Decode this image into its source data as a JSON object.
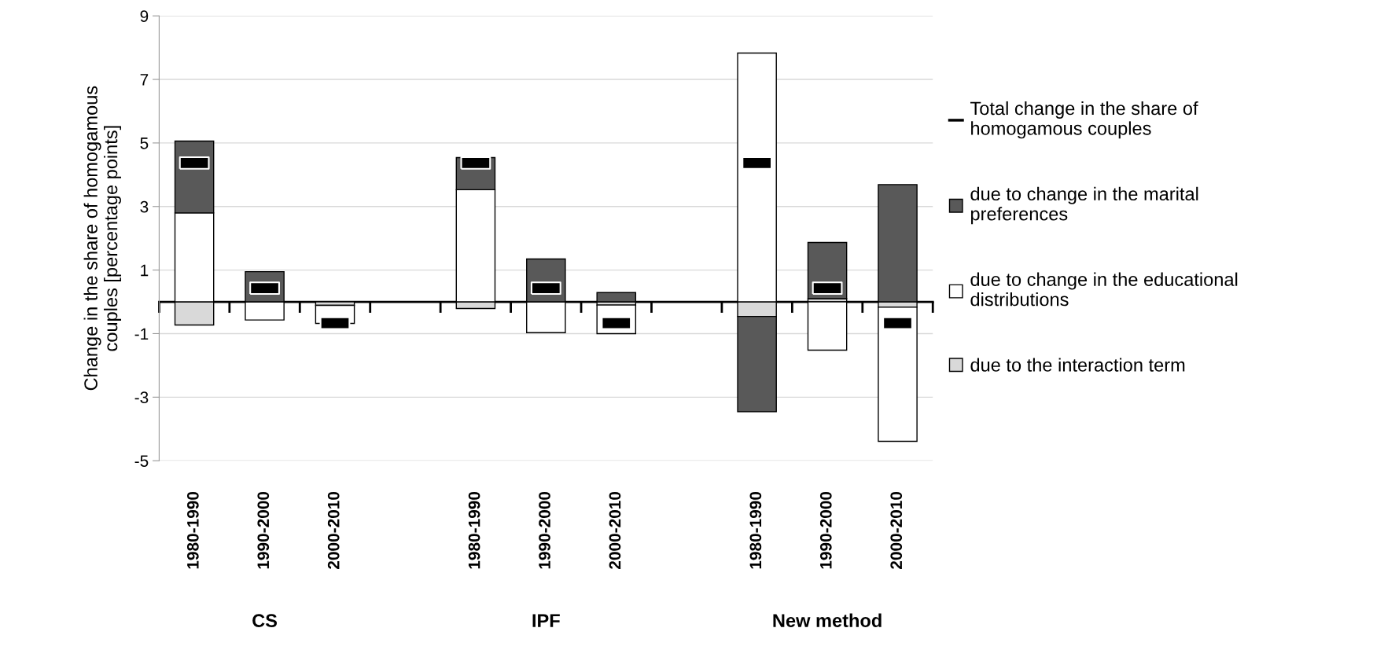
{
  "chart_data": {
    "type": "bar",
    "stacked": true,
    "categories": [
      "1980-1990",
      "1990-2000",
      "2000-2010",
      null,
      "1980-1990",
      "1990-2000",
      "2000-2010",
      null,
      "1980-1990",
      "1990-2000",
      "2000-2010"
    ],
    "ylabel": "Change in the share of homogamous\ncouples [percentage points]",
    "annotations": [
      "CS",
      "IPF",
      "New method"
    ],
    "ylim": [
      -5,
      9
    ],
    "yticks": [
      -5,
      -3,
      -1,
      1,
      3,
      5,
      7,
      9
    ],
    "grid": "y",
    "legend": "right",
    "series": [
      {
        "name": "due to the interaction term",
        "color": "#d9d9d9",
        "values": [
          -0.73,
          null,
          -0.11,
          null,
          -0.21,
          null,
          -0.1,
          null,
          -0.46,
          0.1,
          -0.17
        ]
      },
      {
        "name": "due to change in the educational\ndistributions",
        "color": "#ffffff",
        "values": [
          2.8,
          -0.57,
          -0.57,
          null,
          3.53,
          -0.97,
          -0.9,
          null,
          7.83,
          -1.52,
          -4.22
        ]
      },
      {
        "name": "due to change in the marital\npreferences",
        "color": "#595959",
        "values": [
          2.26,
          0.95,
          null,
          null,
          1.01,
          1.35,
          0.29,
          null,
          -3.0,
          1.77,
          3.69
        ]
      },
      {
        "name": "Total change in the share of\nhomogamous couples",
        "type": "scatter",
        "color": "#000000",
        "values": [
          4.37,
          0.43,
          -0.67,
          null,
          4.37,
          0.43,
          -0.67,
          null,
          4.37,
          0.43,
          -0.67
        ]
      }
    ]
  }
}
